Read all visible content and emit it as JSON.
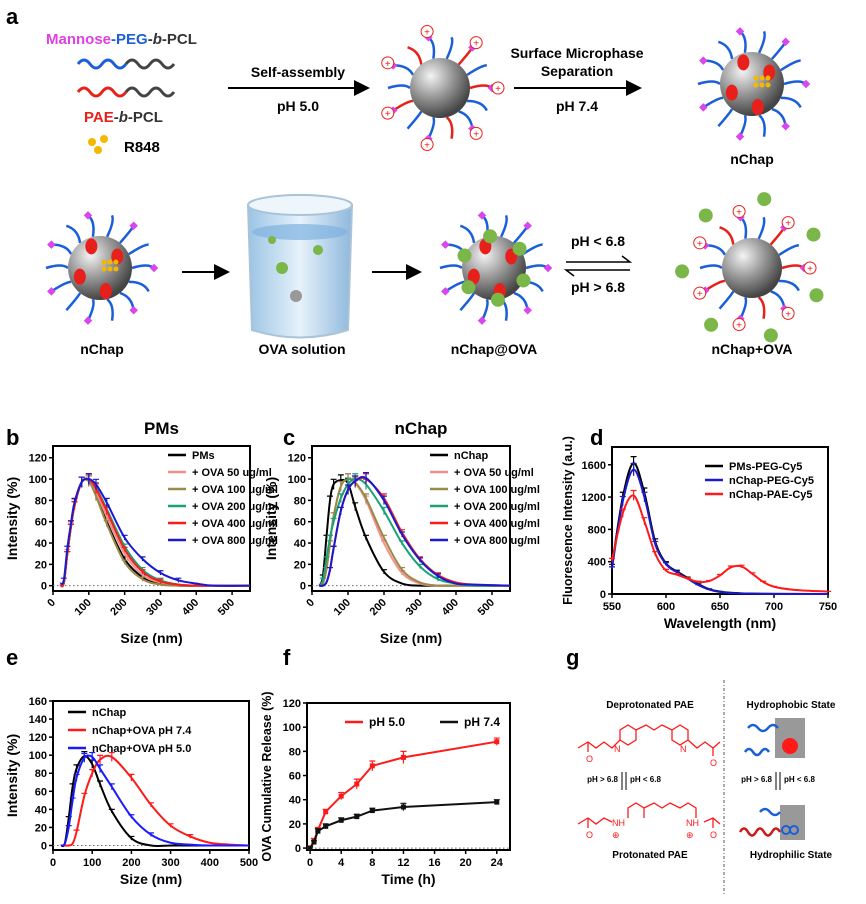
{
  "panel_letters": {
    "a": "a",
    "b": "b",
    "c": "c",
    "d": "d",
    "e": "e",
    "f": "f",
    "g": "g"
  },
  "schematic": {
    "mannose": "Mannose",
    "dash1": "-",
    "peg": "PEG",
    "dash2": "-",
    "b1": "b",
    "pcl1": "-PCL",
    "pae": "PAE",
    "b2": "-b-",
    "pcl2": "PCL",
    "r848": "R848",
    "self_assembly": "Self-assembly",
    "ph50": "pH 5.0",
    "surface_line1": "Surface Microphase",
    "surface_line2": "Separation",
    "ph74": "pH 7.4",
    "nchap_top": "nChap",
    "nchap": "nChap",
    "ova_solution": "OVA solution",
    "nchap_at_ova": "nChap@OVA",
    "ph_lt": "pH < 6.8",
    "ph_gt": "pH > 6.8",
    "nchap_plus_ova": "nChap+OVA",
    "plus_sign": "+",
    "colors": {
      "mannose": "#e040e0",
      "peg": "#1a5fd8",
      "pae": "#e8201c",
      "pcl": "#333333",
      "r848": "#f5b800"
    }
  },
  "panel_g": {
    "deprotonated": "Deprotonated PAE",
    "protonated": "Protonated PAE",
    "hydrophobic": "Hydrophobic State",
    "hydrophilic": "Hydrophilic State",
    "ph_gt": "pH > 6.8",
    "ph_lt": "pH < 6.8",
    "n": "N",
    "nh": "NH",
    "o": "O",
    "plus": "⊕"
  },
  "chart_data": [
    {
      "id": "b",
      "type": "line",
      "title": "PMs",
      "xlabel": "Size (nm)",
      "ylabel": "Intensity (%)",
      "xlim": [
        0,
        550
      ],
      "ylim": [
        -5,
        131
      ],
      "xticks": [
        0,
        100,
        200,
        300,
        400,
        500
      ],
      "yticks": [
        0,
        20,
        40,
        60,
        80,
        100,
        120
      ],
      "x": [
        20,
        30,
        40,
        50,
        60,
        80,
        100,
        120,
        150,
        200,
        250,
        300,
        350,
        400,
        450,
        550
      ],
      "legend": "top-right",
      "series": [
        {
          "name": "PMs",
          "color": "#000000",
          "values": [
            0,
            2,
            30,
            55,
            75,
            97,
            98,
            85,
            60,
            25,
            8,
            2,
            0,
            0,
            0,
            0
          ]
        },
        {
          "name": "+ OVA 50 ug/ml",
          "color": "#f4908c",
          "values": [
            0,
            3,
            32,
            57,
            77,
            97,
            99,
            88,
            65,
            30,
            10,
            3,
            1,
            0,
            0,
            0
          ]
        },
        {
          "name": "+ OVA 100 ug/ml",
          "color": "#9a8a4a",
          "values": [
            0,
            2,
            30,
            55,
            75,
            97,
            98,
            84,
            58,
            22,
            6,
            1,
            0,
            0,
            0,
            0
          ]
        },
        {
          "name": "+ OVA 200 ug/ml",
          "color": "#1aa276",
          "values": [
            0,
            3,
            30,
            55,
            75,
            97,
            100,
            92,
            72,
            37,
            15,
            5,
            1,
            0,
            0,
            0
          ]
        },
        {
          "name": "+ OVA 400 ug/ml",
          "color": "#ff1a1a",
          "values": [
            0,
            3,
            30,
            55,
            75,
            97,
            100,
            91,
            70,
            34,
            13,
            4,
            1,
            0,
            0,
            0
          ]
        },
        {
          "name": "+ OVA 800 ug/ml",
          "color": "#1a1acc",
          "values": [
            2,
            5,
            35,
            58,
            78,
            97,
            100,
            95,
            78,
            45,
            25,
            12,
            5,
            2,
            0,
            0
          ]
        }
      ]
    },
    {
      "id": "c",
      "type": "line",
      "title": "nChap",
      "xlabel": "Size (nm)",
      "ylabel": "Intensity (%)",
      "xlim": [
        0,
        550
      ],
      "ylim": [
        -5,
        131
      ],
      "xticks": [
        0,
        100,
        200,
        300,
        400,
        500
      ],
      "yticks": [
        0,
        20,
        40,
        60,
        80,
        100,
        120
      ],
      "x": [
        20,
        30,
        40,
        50,
        60,
        80,
        100,
        120,
        150,
        200,
        250,
        300,
        350,
        400,
        450,
        550
      ],
      "legend": "top-right",
      "series": [
        {
          "name": "nChap",
          "color": "#000000",
          "values": [
            0,
            8,
            45,
            80,
            95,
            99,
            96,
            74,
            45,
            13,
            2,
            0,
            0,
            0,
            0,
            0
          ]
        },
        {
          "name": "+ OVA 50 ug/ml",
          "color": "#f4908c",
          "values": [
            0,
            2,
            15,
            40,
            65,
            93,
            100,
            96,
            80,
            40,
            12,
            2,
            0,
            0,
            0,
            0
          ]
        },
        {
          "name": "+ OVA 100 ug/ml",
          "color": "#9a8a4a",
          "values": [
            0,
            2,
            15,
            40,
            65,
            93,
            100,
            97,
            82,
            45,
            15,
            3,
            0,
            0,
            0,
            0
          ]
        },
        {
          "name": "+ OVA 200 ug/ml",
          "color": "#1aa276",
          "values": [
            0,
            5,
            25,
            45,
            60,
            82,
            95,
            100,
            95,
            70,
            40,
            18,
            6,
            2,
            0,
            0
          ]
        },
        {
          "name": "+ OVA 400 ug/ml",
          "color": "#ff1a1a",
          "values": [
            0,
            0,
            3,
            15,
            35,
            70,
            90,
            98,
            100,
            82,
            50,
            25,
            10,
            3,
            1,
            0
          ]
        },
        {
          "name": "+ OVA 800 ug/ml",
          "color": "#1a1acc",
          "values": [
            0,
            0,
            3,
            15,
            35,
            70,
            90,
            98,
            101,
            80,
            48,
            24,
            9,
            2,
            1,
            0
          ]
        }
      ]
    },
    {
      "id": "d",
      "type": "line",
      "title": "",
      "xlabel": "Wavelength (nm)",
      "ylabel": "Fluorescence Intensity (a.u.)",
      "xlim": [
        550,
        750
      ],
      "ylim": [
        0,
        1820
      ],
      "xticks": [
        550,
        600,
        650,
        700,
        750
      ],
      "yticks": [
        0,
        400,
        800,
        1200,
        1600
      ],
      "x": [
        550,
        560,
        570,
        580,
        590,
        600,
        610,
        620,
        630,
        640,
        650,
        660,
        670,
        680,
        690,
        700,
        720,
        750
      ],
      "legend": "top-right",
      "series": [
        {
          "name": "PMs-PEG-Cy5",
          "color": "#000000",
          "values": [
            350,
            1200,
            1620,
            1250,
            650,
            380,
            280,
            200,
            120,
            60,
            30,
            15,
            8,
            5,
            3,
            2,
            1,
            0
          ]
        },
        {
          "name": "nChap-PEG-Cy5",
          "color": "#1a1acc",
          "values": [
            320,
            1150,
            1540,
            1200,
            620,
            370,
            270,
            190,
            110,
            55,
            25,
            12,
            6,
            4,
            2,
            1,
            0,
            0
          ]
        },
        {
          "name": "nChap-PAE-Cy5",
          "color": "#ff1a1a",
          "values": [
            420,
            1000,
            1220,
            900,
            500,
            290,
            240,
            190,
            150,
            160,
            230,
            330,
            340,
            250,
            150,
            90,
            50,
            30
          ]
        }
      ]
    },
    {
      "id": "e",
      "type": "line",
      "title": "",
      "xlabel": "Size (nm)",
      "ylabel": "Intensity (%)",
      "xlim": [
        0,
        500
      ],
      "ylim": [
        -5,
        160
      ],
      "xticks": [
        0,
        100,
        200,
        300,
        400,
        500
      ],
      "yticks": [
        0,
        20,
        40,
        60,
        80,
        100,
        120,
        140,
        160
      ],
      "x": [
        20,
        30,
        40,
        50,
        60,
        80,
        100,
        120,
        150,
        200,
        250,
        300,
        350,
        400,
        450,
        500
      ],
      "legend": "top-left",
      "series": [
        {
          "name": "nChap",
          "color": "#000000",
          "values": [
            0,
            2,
            30,
            65,
            85,
            99,
            90,
            68,
            38,
            8,
            0,
            0,
            0,
            0,
            0,
            0
          ]
        },
        {
          "name": "nChap+OVA pH 7.4",
          "color": "#ff1a1a",
          "values": [
            0,
            0,
            0,
            2,
            15,
            55,
            80,
            95,
            98,
            75,
            45,
            22,
            10,
            3,
            1,
            0
          ]
        },
        {
          "name": "nChap+OVA pH 5.0",
          "color": "#1a1aff",
          "values": [
            0,
            2,
            20,
            50,
            75,
            97,
            98,
            85,
            65,
            32,
            12,
            3,
            1,
            0,
            0,
            0
          ]
        }
      ]
    },
    {
      "id": "f",
      "type": "line",
      "title": "",
      "xlabel": "Time (h)",
      "ylabel": "OVA Cumulative Release (%)",
      "xlim": [
        -0.4,
        25.7
      ],
      "ylim": [
        -1.6,
        120
      ],
      "xticks": [
        0,
        4,
        8,
        12,
        16,
        20,
        24
      ],
      "yticks": [
        0,
        20,
        40,
        60,
        80,
        100,
        120
      ],
      "x": [
        0,
        0.5,
        1,
        2,
        4,
        6,
        8,
        12,
        24
      ],
      "legend": "top",
      "series": [
        {
          "name": "pH 5.0",
          "color": "#ff1a1a",
          "values": [
            0,
            6,
            15,
            30,
            43,
            53,
            68,
            75,
            88
          ],
          "errors": [
            1,
            2,
            2,
            2,
            3,
            4,
            4,
            5,
            3
          ]
        },
        {
          "name": "pH 7.4",
          "color": "#111111",
          "values": [
            0,
            5,
            14,
            18,
            23,
            26,
            31,
            34,
            38
          ],
          "errors": [
            1,
            1,
            2,
            2,
            2,
            2,
            2,
            3,
            2
          ]
        }
      ]
    }
  ]
}
